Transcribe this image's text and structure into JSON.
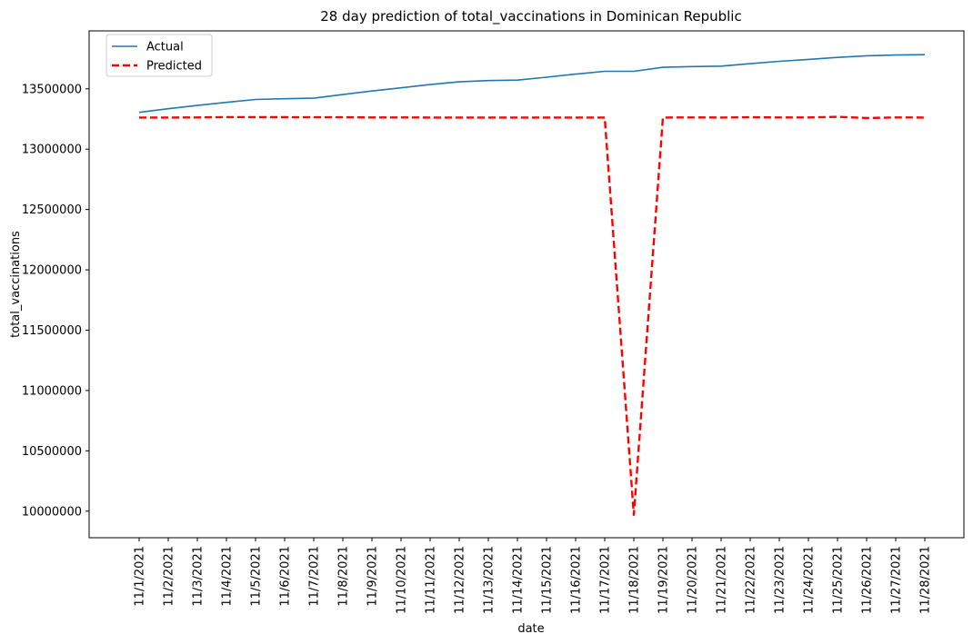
{
  "chart_data": {
    "type": "line",
    "title": "28 day prediction of total_vaccinations in Dominican Republic",
    "xlabel": "date",
    "ylabel": "total_vaccinations",
    "x": [
      "11/1/2021",
      "11/2/2021",
      "11/3/2021",
      "11/4/2021",
      "11/5/2021",
      "11/6/2021",
      "11/7/2021",
      "11/8/2021",
      "11/9/2021",
      "11/10/2021",
      "11/11/2021",
      "11/12/2021",
      "11/13/2021",
      "11/14/2021",
      "11/15/2021",
      "11/16/2021",
      "11/17/2021",
      "11/18/2021",
      "11/19/2021",
      "11/20/2021",
      "11/21/2021",
      "11/22/2021",
      "11/23/2021",
      "11/24/2021",
      "11/25/2021",
      "11/26/2021",
      "11/27/2021",
      "11/28/2021"
    ],
    "yticks": [
      10000000,
      10500000,
      11000000,
      11500000,
      12000000,
      12500000,
      13000000,
      13500000
    ],
    "ylim": [
      9780000,
      13980000
    ],
    "grid": false,
    "legend_position": "top-left",
    "series": [
      {
        "name": "Actual",
        "color": "#1f77b4",
        "style": "solid",
        "values": [
          13305000,
          13335000,
          13362000,
          13388000,
          13412000,
          13418000,
          13422000,
          13452000,
          13482000,
          13508000,
          13535000,
          13558000,
          13568000,
          13572000,
          13596000,
          13622000,
          13645000,
          13645000,
          13678000,
          13684000,
          13688000,
          13708000,
          13728000,
          13744000,
          13760000,
          13774000,
          13780000,
          13783000
        ]
      },
      {
        "name": "Predicted",
        "color": "#ff0000",
        "style": "dashed",
        "values": [
          13262000,
          13262000,
          13263000,
          13266000,
          13265000,
          13265000,
          13264000,
          13264000,
          13263000,
          13263000,
          13262000,
          13262000,
          13262000,
          13262000,
          13262000,
          13262000,
          13262000,
          9970000,
          13262000,
          13263000,
          13262000,
          13264000,
          13263000,
          13263000,
          13268000,
          13258000,
          13263000,
          13262000
        ]
      }
    ]
  }
}
